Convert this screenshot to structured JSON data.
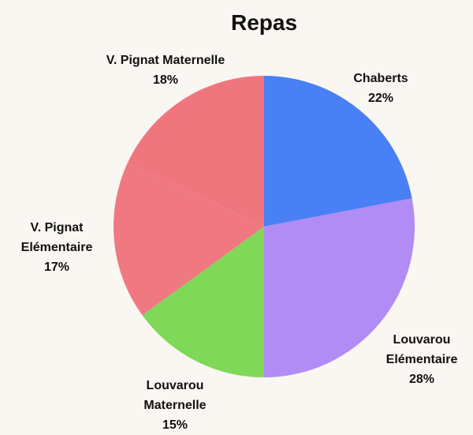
{
  "chart_data": {
    "type": "pie",
    "title": "Repas",
    "categories": [
      "Chaberts",
      "Louvarou Elémentaire",
      "Louvarou Maternelle",
      "V. Pignat Elémentaire",
      "V. Pignat Maternelle"
    ],
    "values": [
      22,
      28,
      15,
      17,
      18
    ],
    "value_labels": [
      "22%",
      "28%",
      "15%",
      "17%",
      "18%"
    ],
    "colors": [
      "#4a80f5",
      "#b18cf5",
      "#7fd858",
      "#f07880",
      "#f0767e"
    ]
  }
}
